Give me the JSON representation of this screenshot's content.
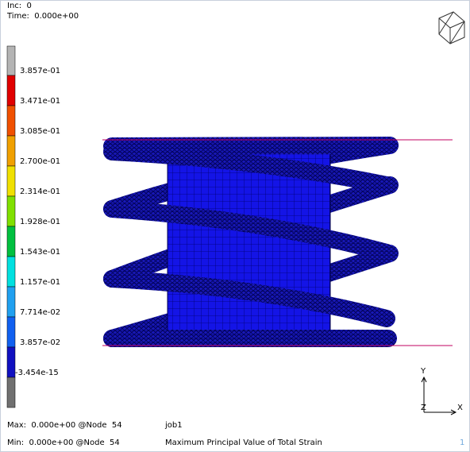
{
  "header": {
    "inc_label": "Inc:",
    "inc": "0",
    "time_label": "Time:",
    "time": "0.000e+00"
  },
  "legend": {
    "labels": [
      "3.857e-01",
      "3.471e-01",
      "3.085e-01",
      "2.700e-01",
      "2.314e-01",
      "1.928e-01",
      "1.543e-01",
      "1.157e-01",
      "7.714e-02",
      "3.857e-02",
      "-3.454e-15"
    ]
  },
  "footer": {
    "max": "Max:  0.000e+00 @Node  54",
    "min": "Min:  0.000e+00 @Node  54",
    "job": "job1",
    "quantity": "Maximum Principal Value of Total Strain",
    "page": "1"
  },
  "axes": {
    "y": "Y",
    "z": "Z",
    "x": "X"
  }
}
